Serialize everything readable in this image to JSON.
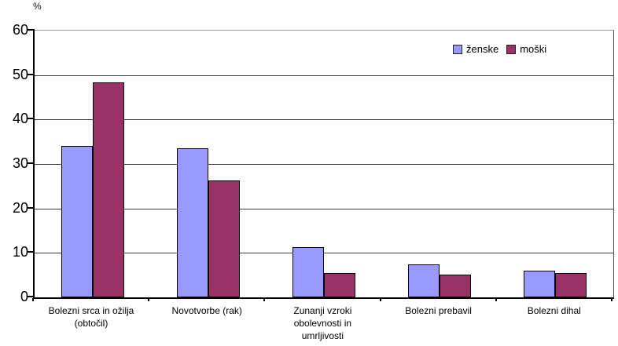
{
  "chart_data": {
    "type": "bar",
    "title": "",
    "ylabel": "%",
    "xlabel": "",
    "ylim": [
      0,
      60
    ],
    "ytick_step": 10,
    "yticks": [
      0,
      10,
      20,
      30,
      40,
      50,
      60
    ],
    "grid": true,
    "legend_position": "top-right",
    "categories": [
      "Bolezni srca in ožilja\n(obtočil)",
      "Novotvorbe (rak)",
      "Zunanji vzroki\nobolevnosti in\numrljivosti",
      "Bolezni prebavil",
      "Bolezni dihal"
    ],
    "series": [
      {
        "name": "ženske",
        "color": "#9999ff",
        "values": [
          34,
          33.5,
          11.3,
          7.4,
          6
        ]
      },
      {
        "name": "moški",
        "color": "#993366",
        "values": [
          48.3,
          26.3,
          5.5,
          5.2,
          5.4
        ]
      }
    ]
  },
  "colors": {
    "background": "#ffffff",
    "axis": "#000000",
    "gridline": "#3a3a3a",
    "plot_top_border": "#9a9a9a",
    "bar_border": "#000000"
  }
}
